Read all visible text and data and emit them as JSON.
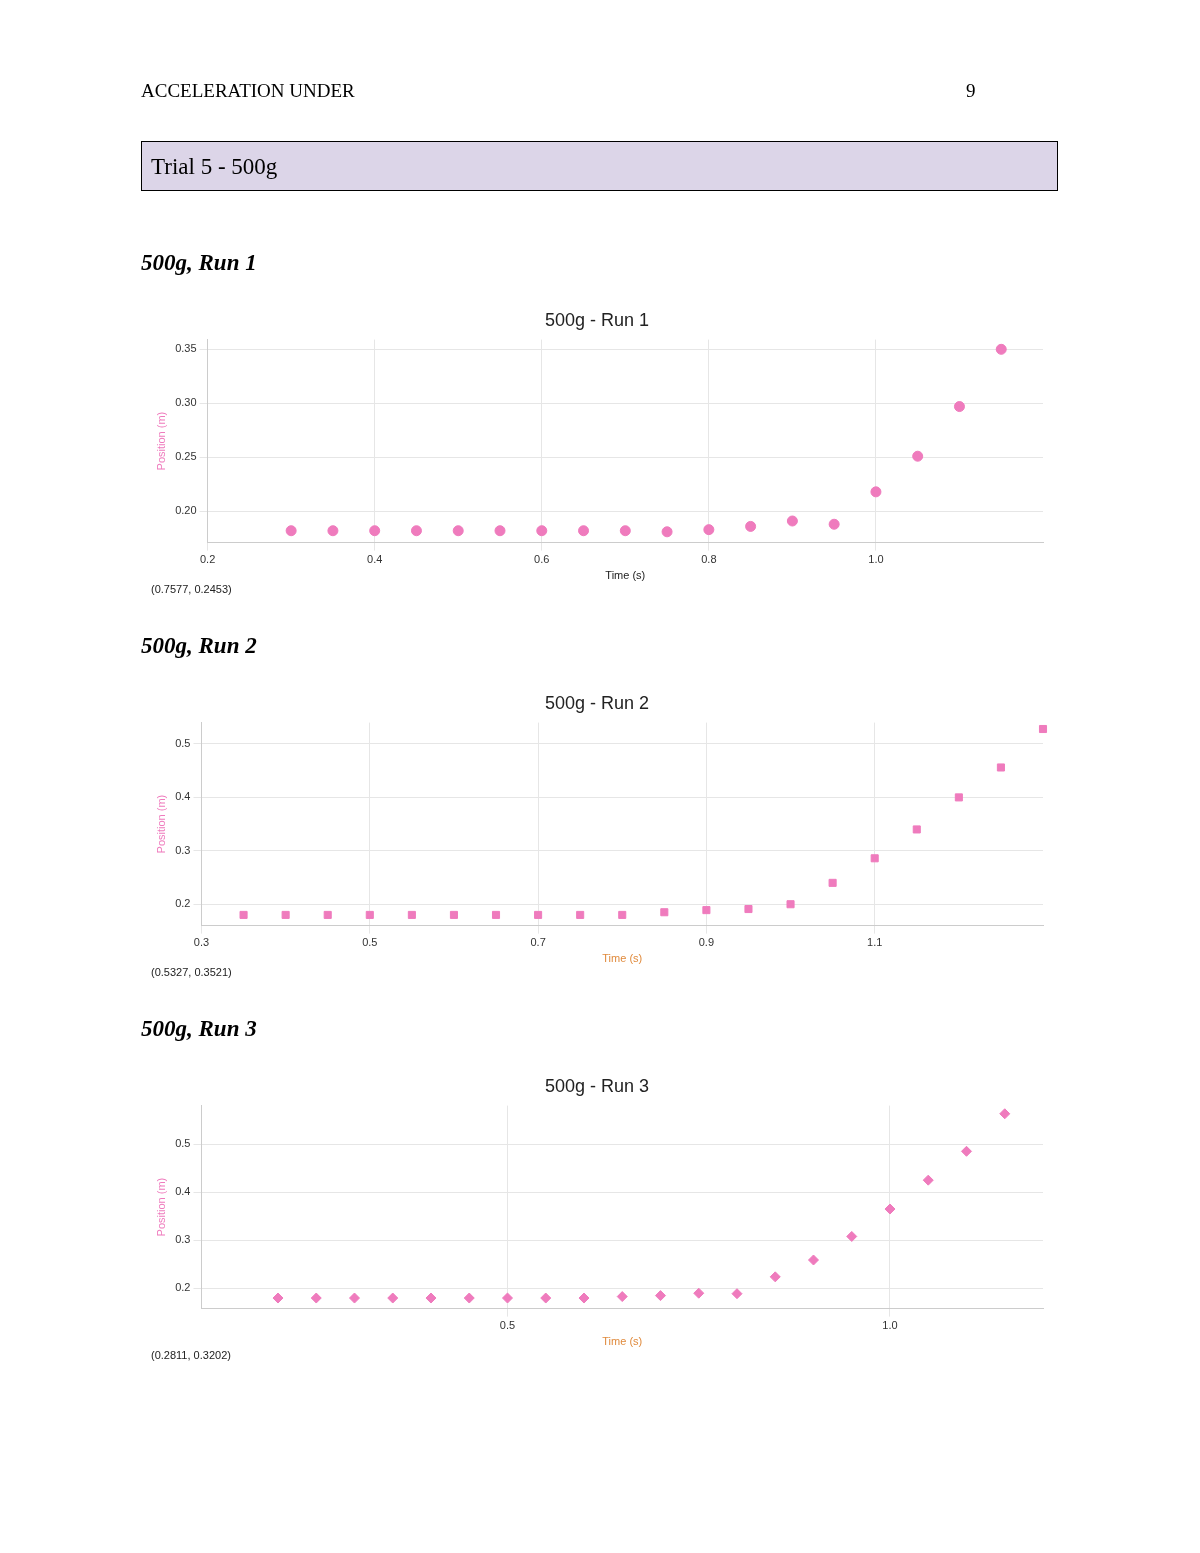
{
  "chart_data": [
    {
      "type": "scatter",
      "title": "500g - Run 1",
      "subtitle": "500g, Run 1",
      "xlabel": "Time (s)",
      "ylabel": "Position (m)",
      "annotations": [
        "ACCELERATION UNDER",
        "9",
        "Trial 5 - 500g",
        "(0.7577, 0.2453)"
      ],
      "marker": "circle",
      "grid": true,
      "xlim": [
        0.2,
        1.2
      ],
      "ylim": [
        0.171,
        0.359
      ],
      "xticks": [
        0.2,
        0.4,
        0.6,
        0.8,
        {
          "value": 1,
          "label": "1.0"
        }
      ],
      "yticks": [
        {
          "value": 0.2,
          "label": "0.20"
        },
        0.25,
        {
          "value": 0.3,
          "label": "0.30"
        },
        0.35
      ],
      "series": [
        {
          "color": "#ef7bbd",
          "x": [
            0.3,
            0.35,
            0.4,
            0.45,
            0.5,
            0.55,
            0.6,
            0.65,
            0.7,
            0.75,
            0.8,
            0.85,
            0.9,
            0.95,
            1.0,
            1.05,
            1.1,
            1.15
          ],
          "values": [
            0.182,
            0.182,
            0.182,
            0.182,
            0.182,
            0.182,
            0.182,
            0.182,
            0.182,
            0.181,
            0.183,
            0.186,
            0.191,
            0.188,
            0.218,
            0.251,
            0.297,
            0.35
          ]
        }
      ]
    },
    {
      "type": "scatter",
      "title": "500g - Run 2",
      "subtitle": "500g, Run 2",
      "xlabel": "Time (s)",
      "ylabel": "Position (m)",
      "annotations": [
        "(0.5327, 0.3521)"
      ],
      "marker": "square",
      "grid": true,
      "xlim": [
        0.3,
        1.3
      ],
      "ylim": [
        0.16,
        0.54
      ],
      "xticks": [
        0.3,
        0.5,
        0.7,
        0.9,
        1.1
      ],
      "yticks": [
        0.2,
        0.3,
        0.4,
        0.5
      ],
      "series": [
        {
          "color": "#ef7bbd",
          "x": [
            0.35,
            0.4,
            0.45,
            0.5,
            0.55,
            0.6,
            0.65,
            0.7,
            0.75,
            0.8,
            0.85,
            0.9,
            0.95,
            1.0,
            1.05,
            1.1,
            1.15,
            1.2,
            1.25,
            1.3
          ],
          "values": [
            0.18,
            0.18,
            0.18,
            0.18,
            0.18,
            0.18,
            0.18,
            0.18,
            0.18,
            0.18,
            0.185,
            0.189,
            0.191,
            0.2,
            0.24,
            0.286,
            0.34,
            0.4,
            0.456,
            0.528
          ]
        }
      ]
    },
    {
      "type": "scatter",
      "title": "500g - Run 3",
      "subtitle": "500g, Run 3",
      "xlabel": "Time (s)",
      "ylabel": "Position (m)",
      "annotations": [
        "(0.2811, 0.3202)"
      ],
      "marker": "diamond",
      "grid": true,
      "xlim": [
        0.1,
        1.2
      ],
      "ylim": [
        0.158,
        0.58
      ],
      "xticks": [
        0.5,
        {
          "value": 1,
          "label": "1.0"
        }
      ],
      "yticks": [
        0.2,
        0.3,
        0.4,
        0.5
      ],
      "series": [
        {
          "color": "#ef7bbd",
          "x": [
            0.2,
            0.25,
            0.3,
            0.35,
            0.4,
            0.45,
            0.5,
            0.55,
            0.6,
            0.65,
            0.7,
            0.75,
            0.8,
            0.85,
            0.9,
            0.95,
            1.0,
            1.05,
            1.1,
            1.15
          ],
          "values": [
            0.18,
            0.18,
            0.18,
            0.18,
            0.18,
            0.18,
            0.18,
            0.18,
            0.18,
            0.183,
            0.185,
            0.19,
            0.189,
            0.224,
            0.259,
            0.308,
            0.365,
            0.425,
            0.485,
            0.563
          ]
        }
      ]
    }
  ]
}
